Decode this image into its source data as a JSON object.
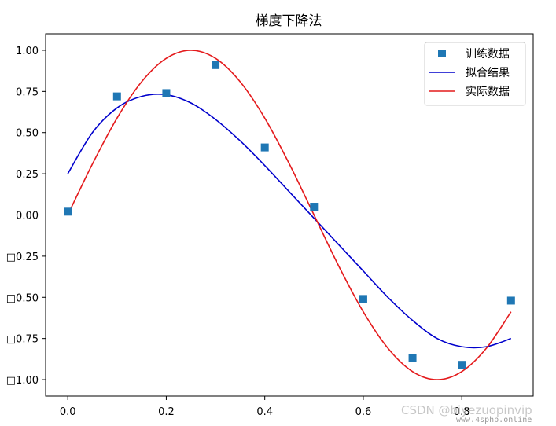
{
  "chart_data": {
    "type": "line",
    "title": "梯度下降法",
    "xlabel": "",
    "ylabel": "",
    "xlim": [
      -0.045,
      0.945
    ],
    "ylim": [
      -1.1,
      1.1
    ],
    "x_ticks": [
      0.0,
      0.2,
      0.4,
      0.6,
      0.8
    ],
    "x_tick_labels": [
      "0.0",
      "0.2",
      "0.4",
      "0.6",
      "0.8"
    ],
    "y_ticks": [
      1.0,
      0.75,
      0.5,
      0.25,
      0.0,
      -0.25,
      -0.5,
      -0.75,
      -1.0
    ],
    "y_tick_labels": [
      "1.00",
      "0.75",
      "0.50",
      "0.25",
      "0.00",
      "□0.25",
      "□0.50",
      "□0.75",
      "□1.00"
    ],
    "grid": false,
    "legend_position": "top-right",
    "series": [
      {
        "name": "训练数据",
        "kind": "scatter",
        "marker": "square",
        "color": "#1f77b4",
        "x": [
          0.0,
          0.1,
          0.2,
          0.3,
          0.4,
          0.5,
          0.6,
          0.7,
          0.8,
          0.9
        ],
        "y": [
          0.02,
          0.72,
          0.74,
          0.91,
          0.41,
          0.05,
          -0.51,
          -0.87,
          -0.91,
          -0.52
        ]
      },
      {
        "name": "拟合结果",
        "kind": "line",
        "color": "#0000cc",
        "x": [
          0.0,
          0.05,
          0.1,
          0.15,
          0.2,
          0.25,
          0.3,
          0.35,
          0.4,
          0.45,
          0.5,
          0.55,
          0.6,
          0.65,
          0.7,
          0.75,
          0.8,
          0.85,
          0.9
        ],
        "y": [
          0.25,
          0.5,
          0.65,
          0.72,
          0.73,
          0.68,
          0.58,
          0.45,
          0.3,
          0.14,
          -0.02,
          -0.18,
          -0.34,
          -0.5,
          -0.64,
          -0.75,
          -0.8,
          -0.8,
          -0.75
        ]
      },
      {
        "name": "实际数据",
        "kind": "line",
        "color": "#e41a1c",
        "x": [
          0.0,
          0.05,
          0.1,
          0.15,
          0.2,
          0.25,
          0.3,
          0.35,
          0.4,
          0.45,
          0.5,
          0.55,
          0.6,
          0.65,
          0.7,
          0.75,
          0.8,
          0.85,
          0.9
        ],
        "y": [
          0.0,
          0.309,
          0.588,
          0.809,
          0.951,
          1.0,
          0.951,
          0.809,
          0.588,
          0.309,
          0.0,
          -0.309,
          -0.588,
          -0.809,
          -0.951,
          -1.0,
          -0.951,
          -0.809,
          -0.588
        ]
      }
    ]
  },
  "watermark": {
    "primary": "CSDN @biyezuopinvip",
    "secondary": "www.4sphp.online"
  }
}
